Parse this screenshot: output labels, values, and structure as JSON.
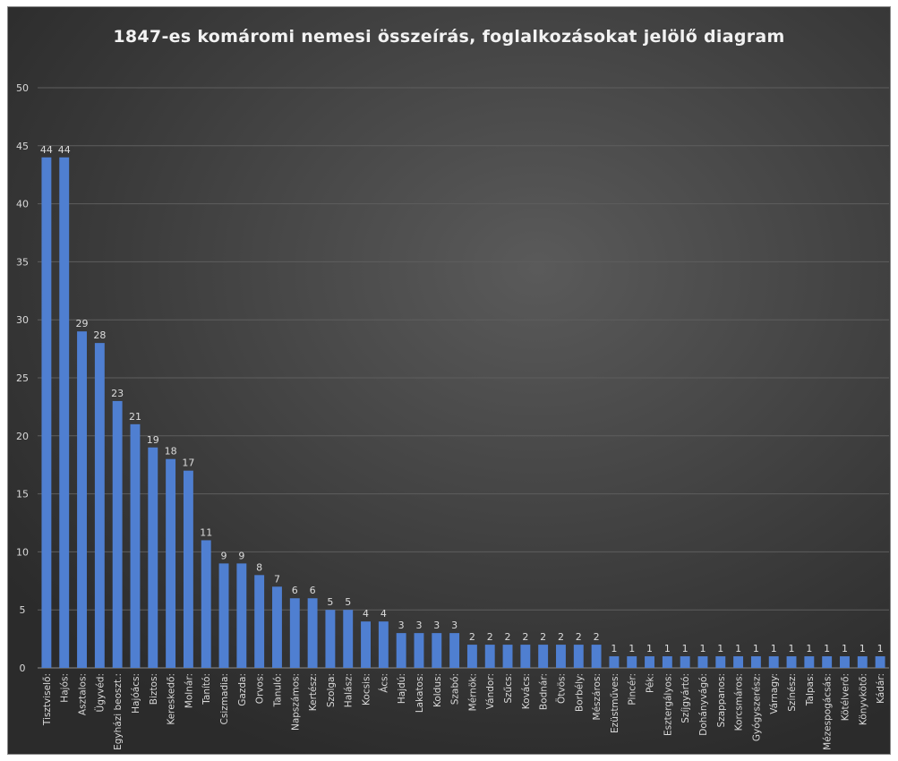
{
  "chart_data": {
    "type": "bar",
    "title": "1847-es komáromi nemesi összeírás, foglalkozásokat jelölő diagram",
    "xlabel": "",
    "ylabel": "",
    "ylim": [
      0,
      50
    ],
    "yticks": [
      0,
      5,
      10,
      15,
      20,
      25,
      30,
      35,
      40,
      45,
      50
    ],
    "grid": true,
    "legend": "none",
    "bar_color": "#4f7fd1",
    "categories": [
      "Tisztviselő:",
      "Hajós:",
      "Asztalos:",
      "Ügyvéd:",
      "Egyházi beoszt.:",
      "Hajóács:",
      "Biztos:",
      "Kereskedő:",
      "Molnár:",
      "Tanító:",
      "Csizmadia:",
      "Gazda:",
      "Orvos:",
      "Tanuló:",
      "Napszámos:",
      "Kertész:",
      "Szolga:",
      "Halász:",
      "Kocsis:",
      "Ács:",
      "Hajdú:",
      "Lakatos:",
      "Koldus:",
      "Szabó:",
      "Mérnök:",
      "Vándor:",
      "Szűcs:",
      "Kovács:",
      "Bodnár:",
      "Ötvös:",
      "Borbély:",
      "Mészáros:",
      "Ezüstműves:",
      "Pincér:",
      "Pék:",
      "Esztergályos:",
      "Szíjgyártó:",
      "Dohányvágó:",
      "Szappanos:",
      "Korcsmáros:",
      "Gyógyszerész:",
      "Várnagy:",
      "Színész:",
      "Talpas:",
      "Mézespogácsás:",
      "Kötélverő:",
      "Könyvkötő:",
      "Kádár:"
    ],
    "values": [
      44,
      44,
      29,
      28,
      23,
      21,
      19,
      18,
      17,
      11,
      9,
      9,
      8,
      7,
      6,
      6,
      5,
      5,
      4,
      4,
      3,
      3,
      3,
      3,
      2,
      2,
      2,
      2,
      2,
      2,
      2,
      2,
      1,
      1,
      1,
      1,
      1,
      1,
      1,
      1,
      1,
      1,
      1,
      1,
      1,
      1,
      1,
      1
    ]
  }
}
